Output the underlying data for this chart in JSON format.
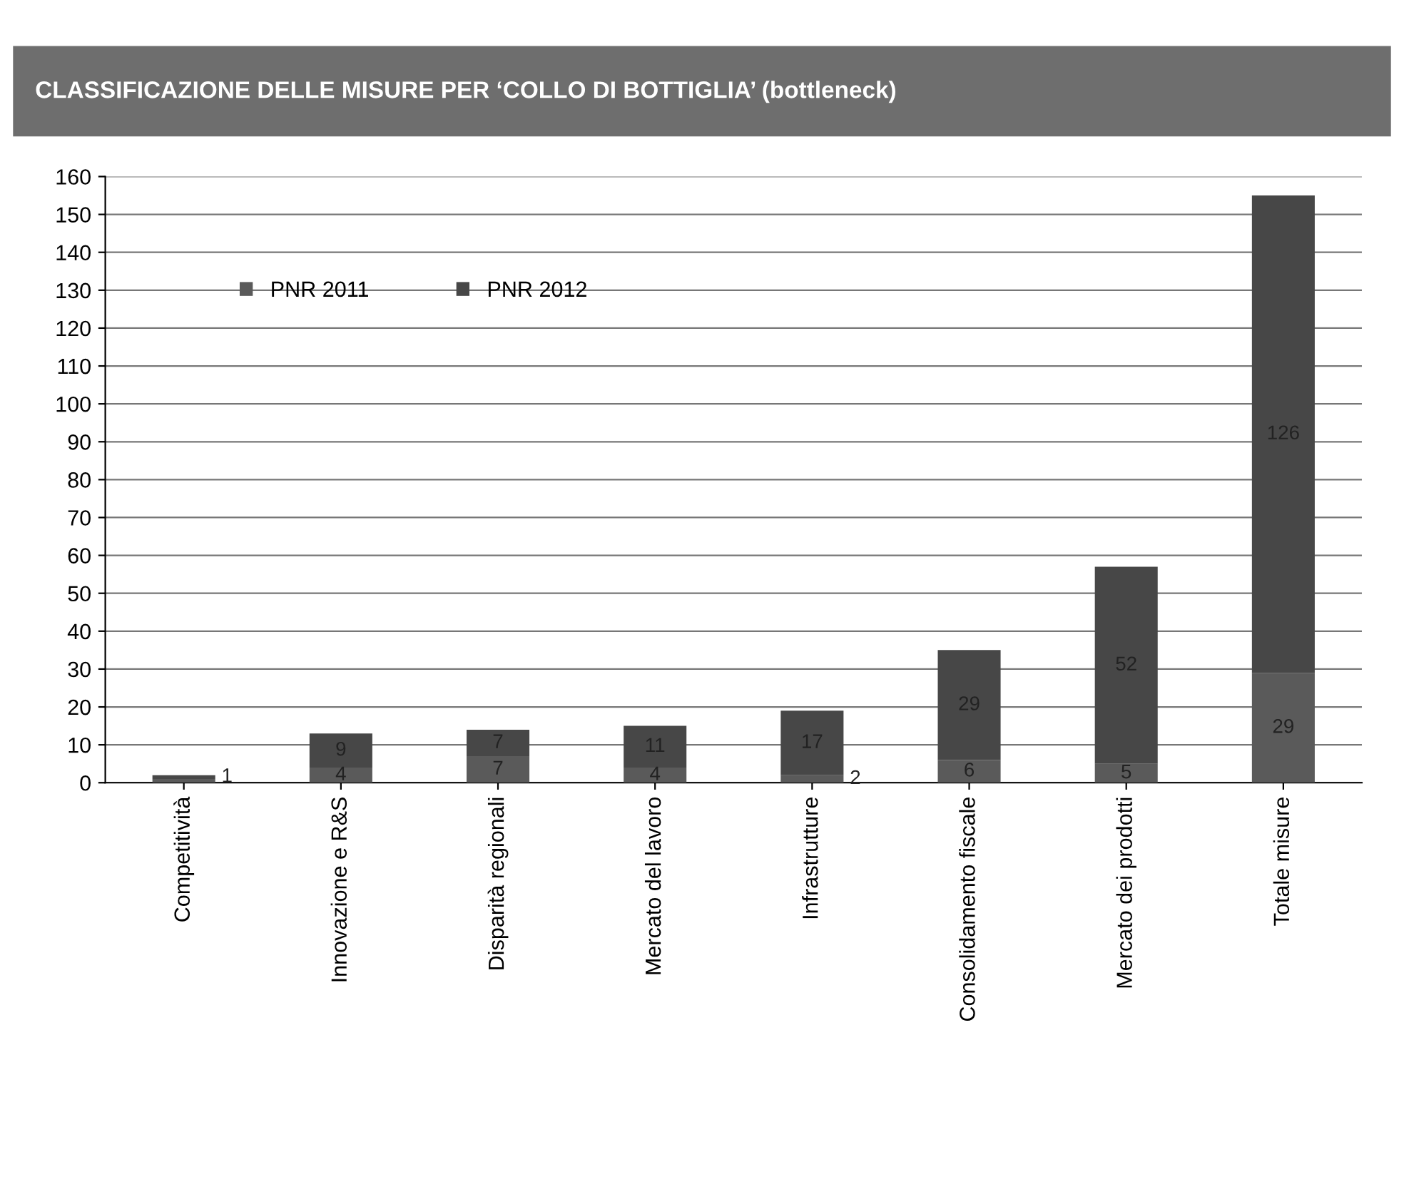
{
  "chart_data": {
    "type": "bar",
    "title": "CLASSIFICAZIONE DELLE MISURE PER ‘COLLO DI BOTTIGLIA’ (bottleneck)",
    "categories": [
      "Competitività",
      "Innovazione e R&S",
      "Disparità regionali",
      "Mercato del lavoro",
      "Infrastrutture",
      "Consolidamento fiscale",
      "Mercato dei prodotti",
      "Totale misure"
    ],
    "series": [
      {
        "name": "PNR 2011",
        "color": "#5a5a5a",
        "values": [
          1,
          4,
          7,
          4,
          2,
          6,
          5,
          29
        ],
        "value_labels": [
          null,
          "4",
          "7",
          "4",
          "2",
          "6",
          "5",
          "29"
        ]
      },
      {
        "name": "PNR 2012",
        "color": "#474747",
        "values": [
          1,
          9,
          7,
          11,
          17,
          29,
          52,
          126
        ],
        "value_labels": [
          "1",
          "9",
          "7",
          "11",
          "17",
          "29",
          "52",
          "126"
        ]
      }
    ],
    "stacked": true,
    "ylim": [
      0,
      160
    ],
    "yticks": [
      0,
      10,
      20,
      30,
      40,
      50,
      60,
      70,
      80,
      90,
      100,
      110,
      120,
      130,
      140,
      150,
      160
    ],
    "grid": "y",
    "legend": "top left"
  }
}
